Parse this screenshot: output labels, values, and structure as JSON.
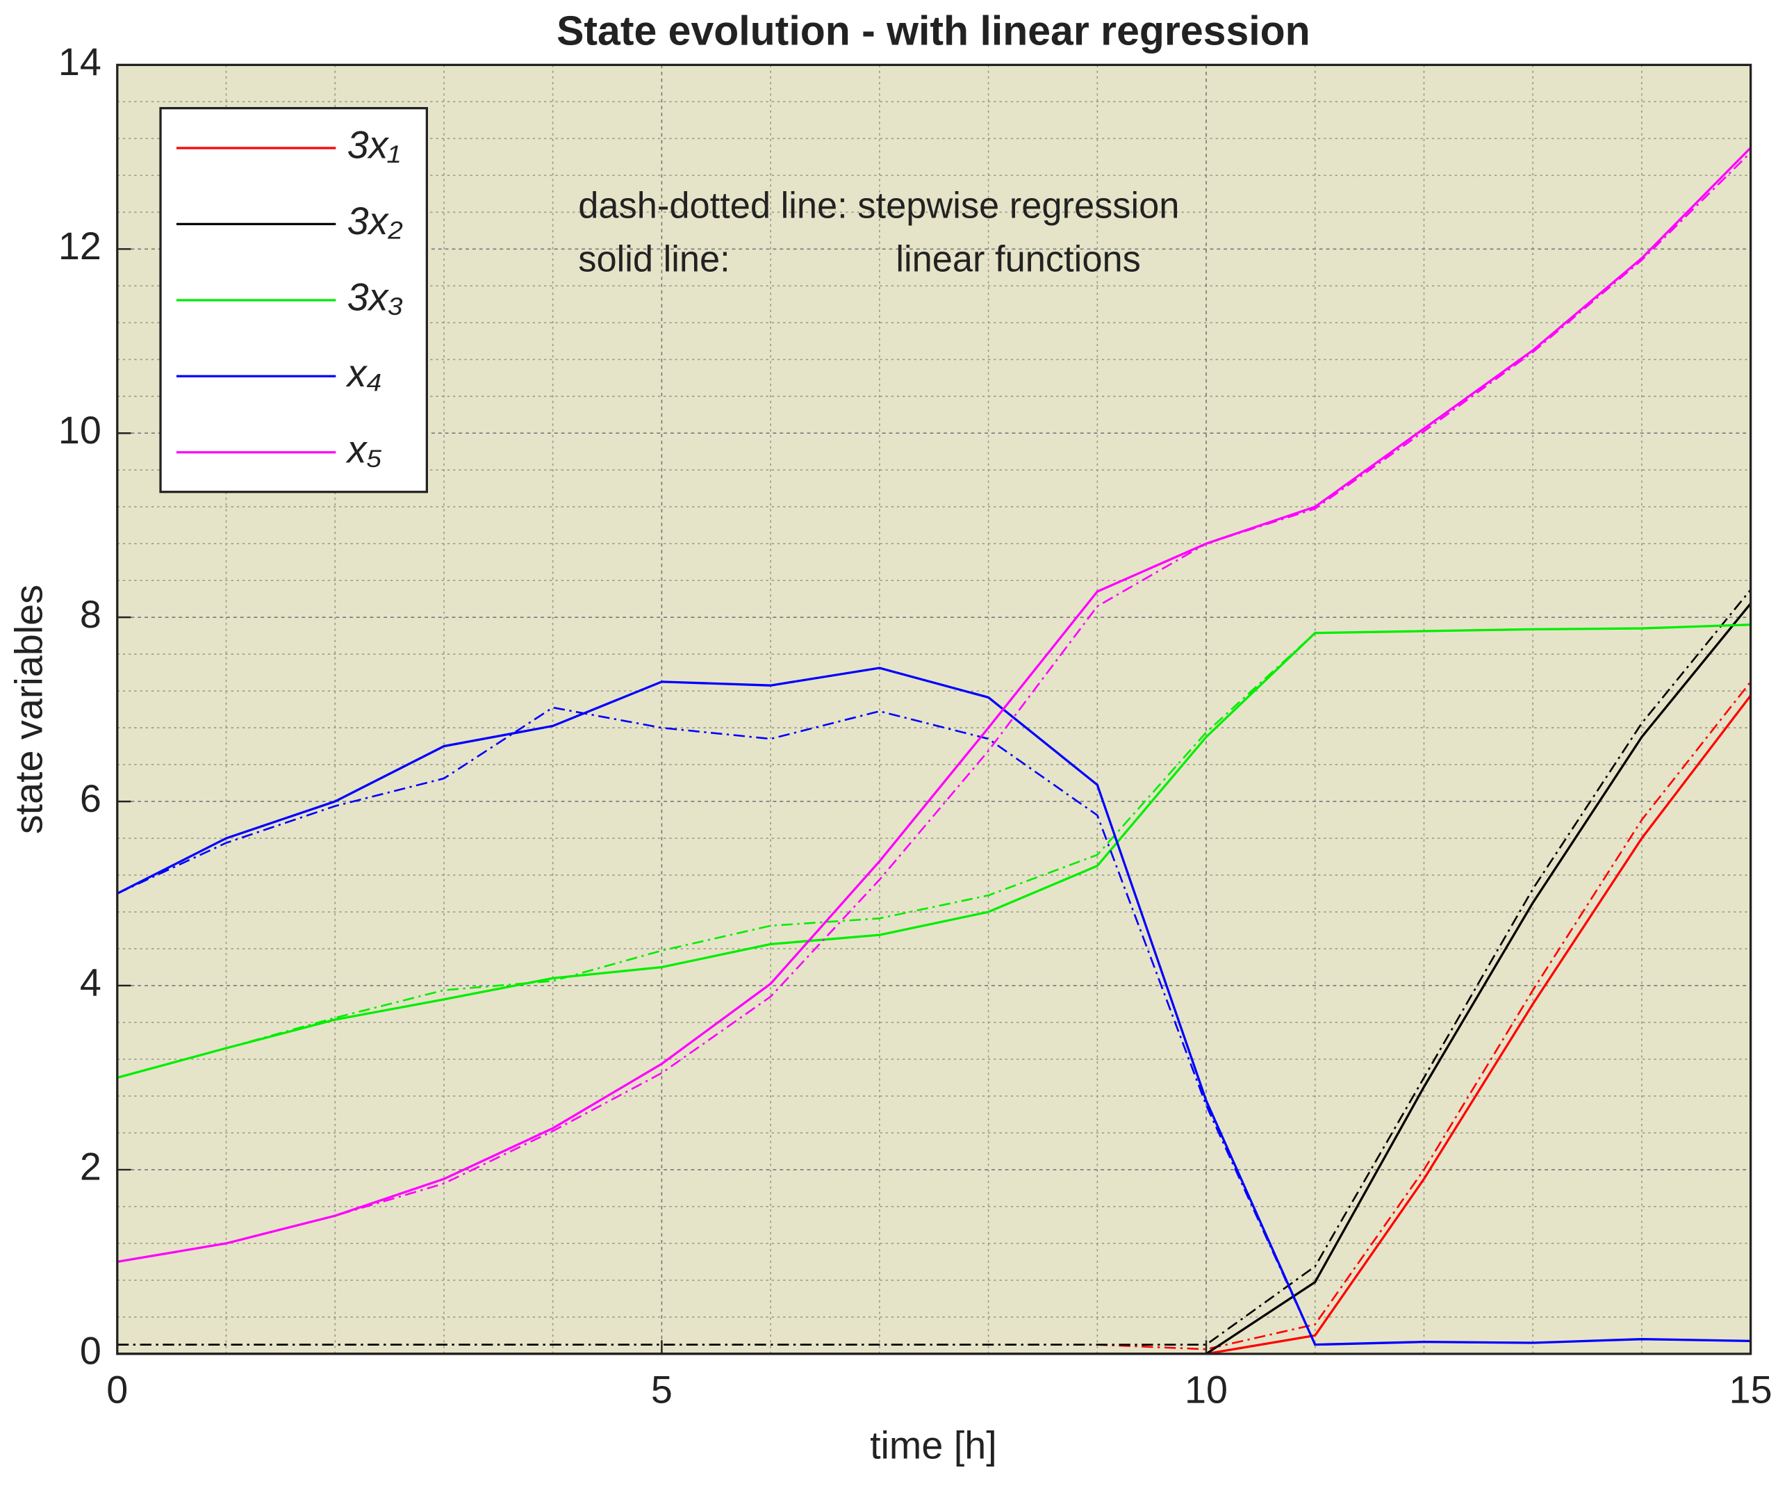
{
  "chart_data": {
    "type": "line",
    "title": "State evolution - with linear regression",
    "xlabel": "time [h]",
    "ylabel": "state variables",
    "annotations": [
      "dash-dotted line: stepwise regression",
      "solid line:",
      "linear functions"
    ],
    "x": [
      0,
      1,
      2,
      3,
      4,
      5,
      6,
      7,
      8,
      9,
      10,
      11,
      12,
      13,
      14,
      15
    ],
    "xlim": [
      0,
      15
    ],
    "xticks": [
      0,
      5,
      10,
      15
    ],
    "ylim": [
      0,
      14
    ],
    "yticks": [
      0,
      2,
      4,
      6,
      8,
      10,
      12,
      14
    ],
    "grid": true,
    "minor_grid": true,
    "legend": "upper left",
    "background": "#e6e4c8",
    "series": [
      {
        "name": "3x₁",
        "color": "#ff0000",
        "values": [
          0,
          0,
          0,
          0,
          0,
          0,
          0,
          0,
          0,
          0,
          0,
          0.2,
          1.9,
          3.8,
          5.6,
          7.15
        ],
        "stepwise_values": [
          0.1,
          0.1,
          0.1,
          0.1,
          0.1,
          0.1,
          0.1,
          0.1,
          0.1,
          0.1,
          0.05,
          0.32,
          2.0,
          3.95,
          5.8,
          7.3
        ]
      },
      {
        "name": "3x₂",
        "color": "#000000",
        "values": [
          0,
          0,
          0,
          0,
          0,
          0,
          0,
          0,
          0,
          0,
          0,
          0.78,
          2.9,
          4.9,
          6.7,
          8.15
        ],
        "stepwise_values": [
          0.1,
          0.1,
          0.1,
          0.1,
          0.1,
          0.1,
          0.1,
          0.1,
          0.1,
          0.1,
          0.1,
          0.95,
          3.0,
          5.05,
          6.85,
          8.3
        ]
      },
      {
        "name": "3x₃",
        "color": "#00ee00",
        "values": [
          3.0,
          3.32,
          3.63,
          3.85,
          4.08,
          4.2,
          4.45,
          4.55,
          4.8,
          5.3,
          6.7,
          7.83,
          7.85,
          7.87,
          7.88,
          7.92
        ],
        "stepwise_values": [
          3.0,
          3.32,
          3.65,
          3.95,
          4.05,
          4.38,
          4.65,
          4.73,
          4.98,
          5.42,
          6.75,
          7.83,
          7.85,
          7.87,
          7.88,
          7.92
        ]
      },
      {
        "name": "x₄",
        "color": "#0000ff",
        "values": [
          5.0,
          5.6,
          6.0,
          6.6,
          6.82,
          7.3,
          7.26,
          7.45,
          7.13,
          6.18,
          2.75,
          0.1,
          0.13,
          0.12,
          0.16,
          0.14
        ],
        "stepwise_values": [
          5.0,
          5.55,
          5.95,
          6.25,
          7.02,
          6.8,
          6.68,
          6.98,
          6.68,
          5.85,
          2.7,
          0.1,
          0.13,
          0.12,
          0.16,
          0.14
        ]
      },
      {
        "name": "x₅",
        "color": "#ff00ff",
        "values": [
          1.0,
          1.2,
          1.5,
          1.9,
          2.45,
          3.15,
          4.02,
          5.35,
          6.8,
          8.28,
          8.8,
          9.2,
          10.05,
          10.9,
          11.9,
          13.1
        ],
        "stepwise_values": [
          1.0,
          1.2,
          1.5,
          1.85,
          2.42,
          3.05,
          3.88,
          5.15,
          6.55,
          8.12,
          8.8,
          9.18,
          10.02,
          10.88,
          11.88,
          13.05
        ]
      }
    ]
  }
}
